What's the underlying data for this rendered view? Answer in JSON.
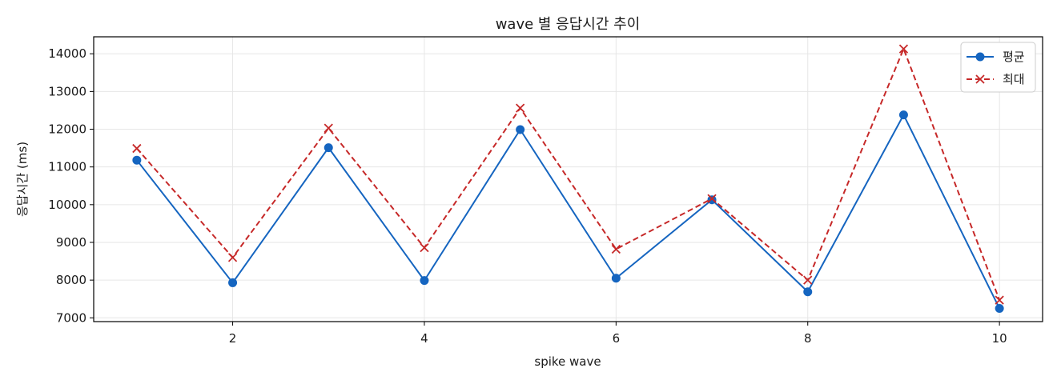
{
  "chart_data": {
    "type": "line",
    "title": "wave 별 응답시간 추이",
    "xlabel": "spike wave",
    "ylabel": "응답시간 (ms)",
    "x": [
      1,
      2,
      3,
      4,
      5,
      6,
      7,
      8,
      9,
      10
    ],
    "xlim": [
      0.55,
      10.45
    ],
    "ylim": [
      6900,
      14450
    ],
    "xticks": [
      2,
      4,
      6,
      8,
      10
    ],
    "yticks": [
      7000,
      8000,
      9000,
      10000,
      11000,
      12000,
      13000,
      14000
    ],
    "grid": true,
    "legend_position": "top-right",
    "series": [
      {
        "name": "평균",
        "color": "#1565c0",
        "marker": "circle",
        "line_style": "solid",
        "values": [
          11180,
          7930,
          11510,
          7990,
          11990,
          8050,
          10130,
          7690,
          12380,
          7250
        ]
      },
      {
        "name": "최대",
        "color": "#c62828",
        "marker": "x",
        "line_style": "dashed",
        "values": [
          11490,
          8600,
          12030,
          8860,
          12560,
          8820,
          10160,
          8000,
          14130,
          7470
        ]
      }
    ]
  }
}
